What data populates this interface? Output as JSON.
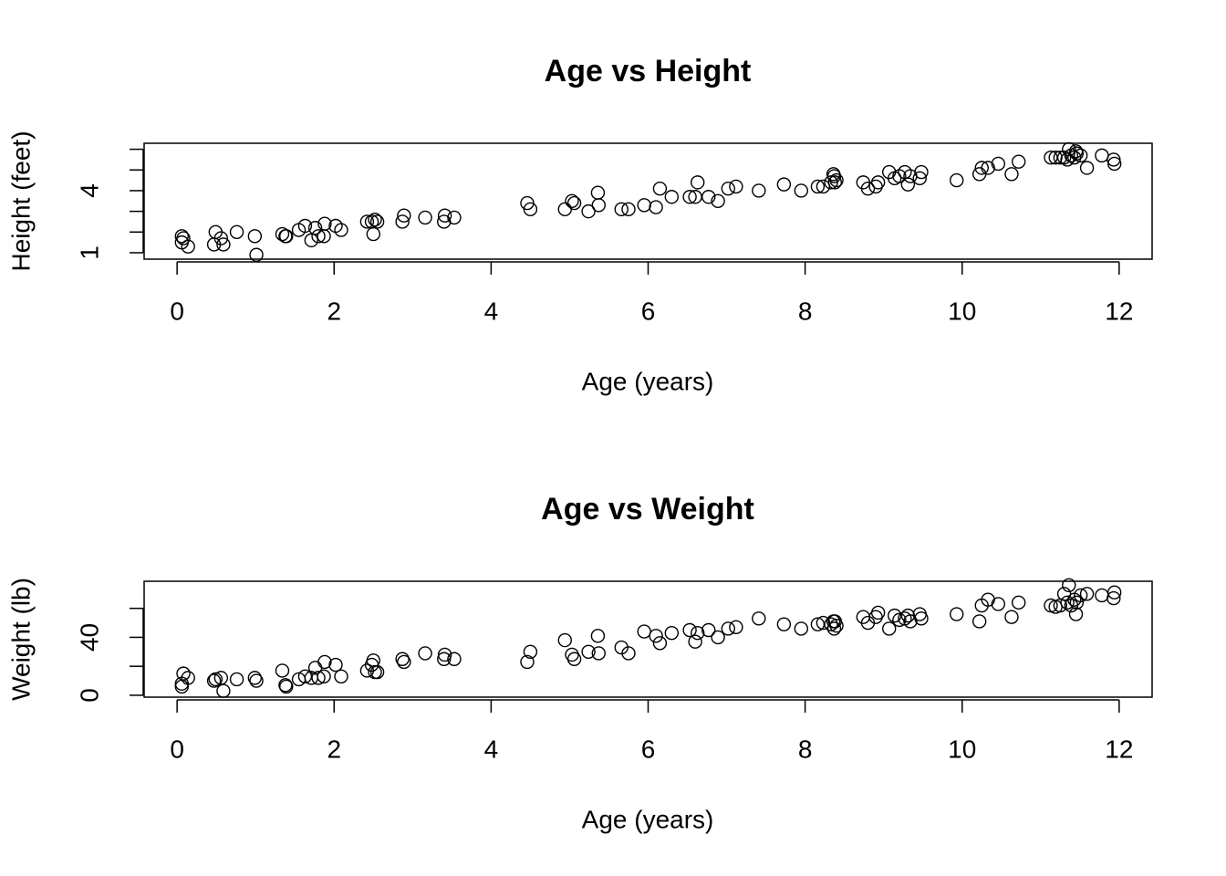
{
  "chart_data": [
    {
      "type": "scatter",
      "title": "Age vs Height",
      "xlabel": "Age (years)",
      "ylabel": "Height (feet)",
      "color": "#000000",
      "x": [
        0.06,
        0.08,
        0.06,
        0.14,
        0.49,
        0.56,
        0.47,
        0.59,
        0.76,
        0.99,
        1.01,
        1.34,
        1.38,
        1.39,
        1.55,
        1.63,
        1.71,
        1.76,
        1.8,
        1.88,
        1.87,
        2.02,
        2.09,
        2.42,
        2.48,
        2.5,
        2.52,
        2.55,
        2.87,
        2.89,
        3.16,
        3.4,
        3.41,
        3.53,
        4.46,
        4.5,
        4.94,
        5.03,
        5.06,
        5.24,
        5.36,
        5.37,
        5.66,
        5.75,
        5.95,
        6.1,
        6.15,
        6.3,
        6.53,
        6.6,
        6.63,
        6.77,
        6.89,
        7.02,
        7.12,
        7.41,
        7.73,
        7.95,
        8.16,
        8.23,
        8.33,
        8.36,
        8.37,
        8.38,
        8.4,
        8.74,
        8.8,
        8.9,
        8.93,
        9.07,
        9.14,
        9.2,
        9.27,
        9.31,
        9.34,
        9.46,
        9.48,
        9.93,
        10.22,
        10.25,
        10.33,
        10.46,
        10.63,
        10.72,
        11.13,
        11.19,
        11.25,
        11.3,
        11.34,
        11.36,
        11.39,
        11.43,
        11.45,
        11.46,
        11.51,
        11.59,
        11.78,
        11.93,
        11.94
      ],
      "y": [
        1.8,
        1.7,
        1.5,
        1.3,
        2.0,
        1.7,
        1.4,
        1.4,
        2.0,
        1.8,
        0.9,
        1.9,
        1.8,
        1.8,
        2.1,
        2.3,
        1.6,
        2.2,
        1.8,
        2.4,
        1.8,
        2.3,
        2.1,
        2.5,
        2.5,
        1.9,
        2.6,
        2.5,
        2.5,
        2.8,
        2.7,
        2.5,
        2.8,
        2.7,
        3.4,
        3.1,
        3.1,
        3.5,
        3.4,
        3.0,
        3.9,
        3.3,
        3.1,
        3.1,
        3.3,
        3.2,
        4.1,
        3.7,
        3.7,
        3.7,
        4.4,
        3.7,
        3.5,
        4.1,
        4.2,
        4.0,
        4.3,
        4.0,
        4.2,
        4.2,
        4.4,
        4.8,
        4.7,
        4.4,
        4.5,
        4.4,
        4.1,
        4.2,
        4.4,
        4.9,
        4.6,
        4.7,
        4.9,
        4.3,
        4.7,
        4.6,
        4.9,
        4.5,
        4.8,
        5.1,
        5.1,
        5.3,
        4.8,
        5.4,
        5.6,
        5.6,
        5.6,
        5.6,
        5.5,
        6.0,
        5.7,
        5.6,
        5.9,
        5.8,
        5.7,
        5.1,
        5.7,
        5.5,
        5.3
      ],
      "xlim": [
        -0.42,
        12.42
      ],
      "xticks": [
        0,
        2,
        4,
        6,
        8,
        10,
        12
      ],
      "ylim": [
        0.69,
        6.29
      ],
      "yticks": [
        1,
        4
      ],
      "yminor_ticks": [
        2,
        3,
        5,
        6
      ]
    },
    {
      "type": "scatter",
      "title": "Age vs Weight",
      "xlabel": "Age (years)",
      "ylabel": "Weight (lb)",
      "color": "#000000",
      "x": [
        0.06,
        0.08,
        0.06,
        0.14,
        0.49,
        0.56,
        0.47,
        0.59,
        0.76,
        0.99,
        1.01,
        1.34,
        1.38,
        1.39,
        1.55,
        1.63,
        1.71,
        1.76,
        1.8,
        1.88,
        1.87,
        2.02,
        2.09,
        2.42,
        2.48,
        2.5,
        2.52,
        2.55,
        2.87,
        2.89,
        3.16,
        3.4,
        3.41,
        3.53,
        4.46,
        4.5,
        4.94,
        5.03,
        5.06,
        5.24,
        5.36,
        5.37,
        5.66,
        5.75,
        5.95,
        6.1,
        6.15,
        6.3,
        6.53,
        6.6,
        6.63,
        6.77,
        6.89,
        7.02,
        7.12,
        7.41,
        7.73,
        7.95,
        8.16,
        8.23,
        8.33,
        8.36,
        8.37,
        8.38,
        8.4,
        8.74,
        8.8,
        8.9,
        8.93,
        9.07,
        9.14,
        9.2,
        9.27,
        9.31,
        9.34,
        9.46,
        9.48,
        9.93,
        10.22,
        10.25,
        10.33,
        10.46,
        10.63,
        10.72,
        11.13,
        11.19,
        11.25,
        11.3,
        11.34,
        11.36,
        11.39,
        11.43,
        11.45,
        11.46,
        11.51,
        11.59,
        11.78,
        11.93,
        11.94
      ],
      "y": [
        8,
        15,
        6,
        12,
        11,
        12,
        10,
        3,
        11,
        12,
        10,
        17,
        7,
        6,
        11,
        13,
        12,
        19,
        12,
        23,
        13,
        21,
        13,
        17,
        21,
        24,
        16,
        16,
        25,
        23,
        29,
        25,
        28,
        25,
        23,
        30,
        38,
        28,
        25,
        30,
        41,
        29,
        33,
        29,
        44,
        41,
        36,
        43,
        45,
        37,
        43,
        45,
        40,
        46,
        47,
        53,
        49,
        46,
        49,
        50,
        49,
        51,
        46,
        51,
        48,
        54,
        50,
        54,
        57,
        46,
        55,
        52,
        53,
        55,
        51,
        56,
        53,
        56,
        51,
        62,
        66,
        63,
        54,
        64,
        62,
        61,
        62,
        70,
        64,
        76,
        62,
        66,
        56,
        64,
        69,
        70,
        69,
        67,
        71
      ],
      "xlim": [
        -0.42,
        12.42
      ],
      "xticks": [
        0,
        2,
        4,
        6,
        8,
        10,
        12
      ],
      "ylim": [
        -1.3,
        78.7
      ],
      "yticks": [
        0,
        40
      ],
      "yminor_ticks": [
        20,
        60
      ]
    }
  ]
}
